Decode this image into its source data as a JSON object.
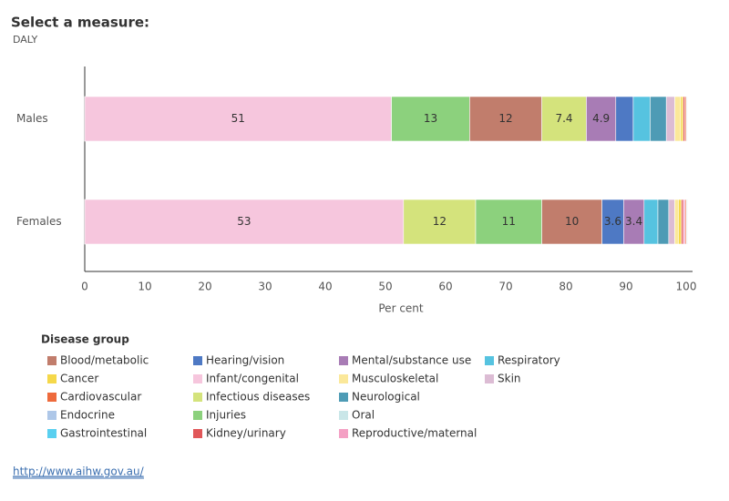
{
  "header": {
    "title": "Select a measure:",
    "measure": "DALY"
  },
  "chart_data": {
    "type": "bar",
    "orientation": "horizontal",
    "stacked": true,
    "categories": [
      "Males",
      "Females"
    ],
    "xlabel": "Per cent",
    "xlim": [
      0,
      100
    ],
    "xticks": [
      0,
      10,
      20,
      30,
      40,
      50,
      60,
      70,
      80,
      90,
      100
    ],
    "legend_title": "Disease group",
    "series": [
      {
        "name": "Blood/metabolic",
        "color": "#c17d6c",
        "values": [
          12,
          10
        ]
      },
      {
        "name": "Cancer",
        "color": "#f5d84a",
        "values": [
          0.4,
          0.5
        ]
      },
      {
        "name": "Cardiovascular",
        "color": "#ee6a3c",
        "values": [
          0.2,
          0.2
        ]
      },
      {
        "name": "Endocrine",
        "color": "#aec7e8",
        "values": [
          0.1,
          0.1
        ]
      },
      {
        "name": "Gastrointestinal",
        "color": "#5ad0f0",
        "values": [
          0.1,
          0.1
        ]
      },
      {
        "name": "Hearing/vision",
        "color": "#4e79c4",
        "values": [
          2.9,
          3.6
        ]
      },
      {
        "name": "Infant/congenital",
        "color": "#f6c6dd",
        "values": [
          51,
          53
        ]
      },
      {
        "name": "Infectious diseases",
        "color": "#d4e37c",
        "values": [
          7.4,
          12
        ]
      },
      {
        "name": "Injuries",
        "color": "#8cd17d",
        "values": [
          13,
          11
        ]
      },
      {
        "name": "Kidney/urinary",
        "color": "#e15759",
        "values": [
          0.3,
          0.3
        ]
      },
      {
        "name": "Mental/substance use",
        "color": "#a87cb5",
        "values": [
          4.9,
          3.4
        ]
      },
      {
        "name": "Musculoskeletal",
        "color": "#fbe89a",
        "values": [
          1.0,
          0.6
        ]
      },
      {
        "name": "Neurological",
        "color": "#4e9bb5",
        "values": [
          2.7,
          1.8
        ]
      },
      {
        "name": "Oral",
        "color": "#c9e6e8",
        "values": [
          0.1,
          0.1
        ]
      },
      {
        "name": "Reproductive/maternal",
        "color": "#f4a0c4",
        "values": [
          0.05,
          0.3
        ]
      },
      {
        "name": "Respiratory",
        "color": "#56c3e0",
        "values": [
          2.8,
          2.3
        ]
      },
      {
        "name": "Skin",
        "color": "#dcbcd4",
        "values": [
          1.4,
          1.0
        ]
      }
    ]
  },
  "footer": {
    "link": "http://www.aihw.gov.au/"
  }
}
